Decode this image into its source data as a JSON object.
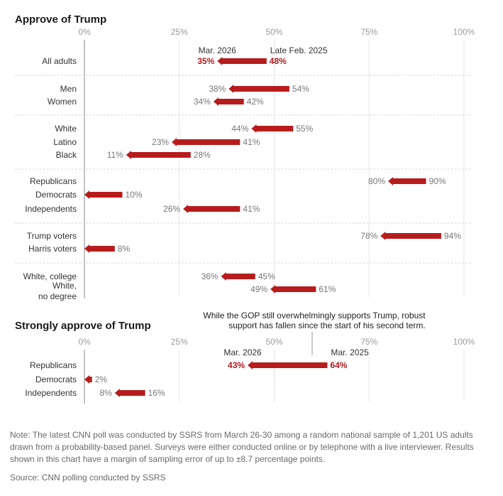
{
  "chart_data": [
    {
      "type": "bar",
      "title": "Approve of Trump",
      "xlim": [
        0,
        100
      ],
      "x_ticks": [
        "0%",
        "25%",
        "50%",
        "75%",
        "100%"
      ],
      "column_headers": {
        "new": "Mar. 2026",
        "old": "Late Feb. 2025"
      },
      "colors": {
        "arrow": "#b71c1c",
        "highlight": "#b0191e"
      },
      "groups": [
        {
          "rows": [
            {
              "label": "All adults",
              "old": 48,
              "new": 35,
              "highlight": true
            }
          ]
        },
        {
          "rows": [
            {
              "label": "Men",
              "old": 54,
              "new": 38
            },
            {
              "label": "Women",
              "old": 42,
              "new": 34
            }
          ]
        },
        {
          "rows": [
            {
              "label": "White",
              "old": 55,
              "new": 44
            },
            {
              "label": "Latino",
              "old": 41,
              "new": 23
            },
            {
              "label": "Black",
              "old": 28,
              "new": 11
            }
          ]
        },
        {
          "rows": [
            {
              "label": "Republicans",
              "old": 90,
              "new": 80
            },
            {
              "label": "Democrats",
              "old": 10,
              "new": null
            },
            {
              "label": "Independents",
              "old": 41,
              "new": 26
            }
          ]
        },
        {
          "rows": [
            {
              "label": "Trump voters",
              "old": 94,
              "new": 78
            },
            {
              "label": "Harris voters",
              "old": 8,
              "new": null
            }
          ]
        },
        {
          "rows": [
            {
              "label": "White, college",
              "old": 45,
              "new": 36
            },
            {
              "label": "White,",
              "label2": "no degree",
              "old": 61,
              "new": 49
            }
          ]
        }
      ]
    },
    {
      "type": "bar",
      "title": "Strongly approve of Trump",
      "xlim": [
        0,
        100
      ],
      "x_ticks": [
        "0%",
        "25%",
        "50%",
        "75%",
        "100%"
      ],
      "column_headers": {
        "new": "Mar. 2026",
        "old": "Mar. 2025"
      },
      "annotation": [
        "While the GOP still overwhelmingly supports Trump, robust",
        "support has fallen since the start of his second term."
      ],
      "rows": [
        {
          "label": "Republicans",
          "old": 64,
          "new": 43,
          "highlight": true
        },
        {
          "label": "Democrats",
          "old": 2,
          "new": null
        },
        {
          "label": "Independents",
          "old": 16,
          "new": 8
        }
      ]
    }
  ],
  "note": "Note: The latest CNN poll was conducted by SSRS from March 26-30 among a random national sample of 1,201 US adults drawn from a probability-based panel. Surveys were either conducted online or by telephone with a live interviewer. Results shown in this chart have a margin of sampling error of up to ±8.7 percentage points.",
  "source": "Source: CNN polling conducted by SSRS"
}
